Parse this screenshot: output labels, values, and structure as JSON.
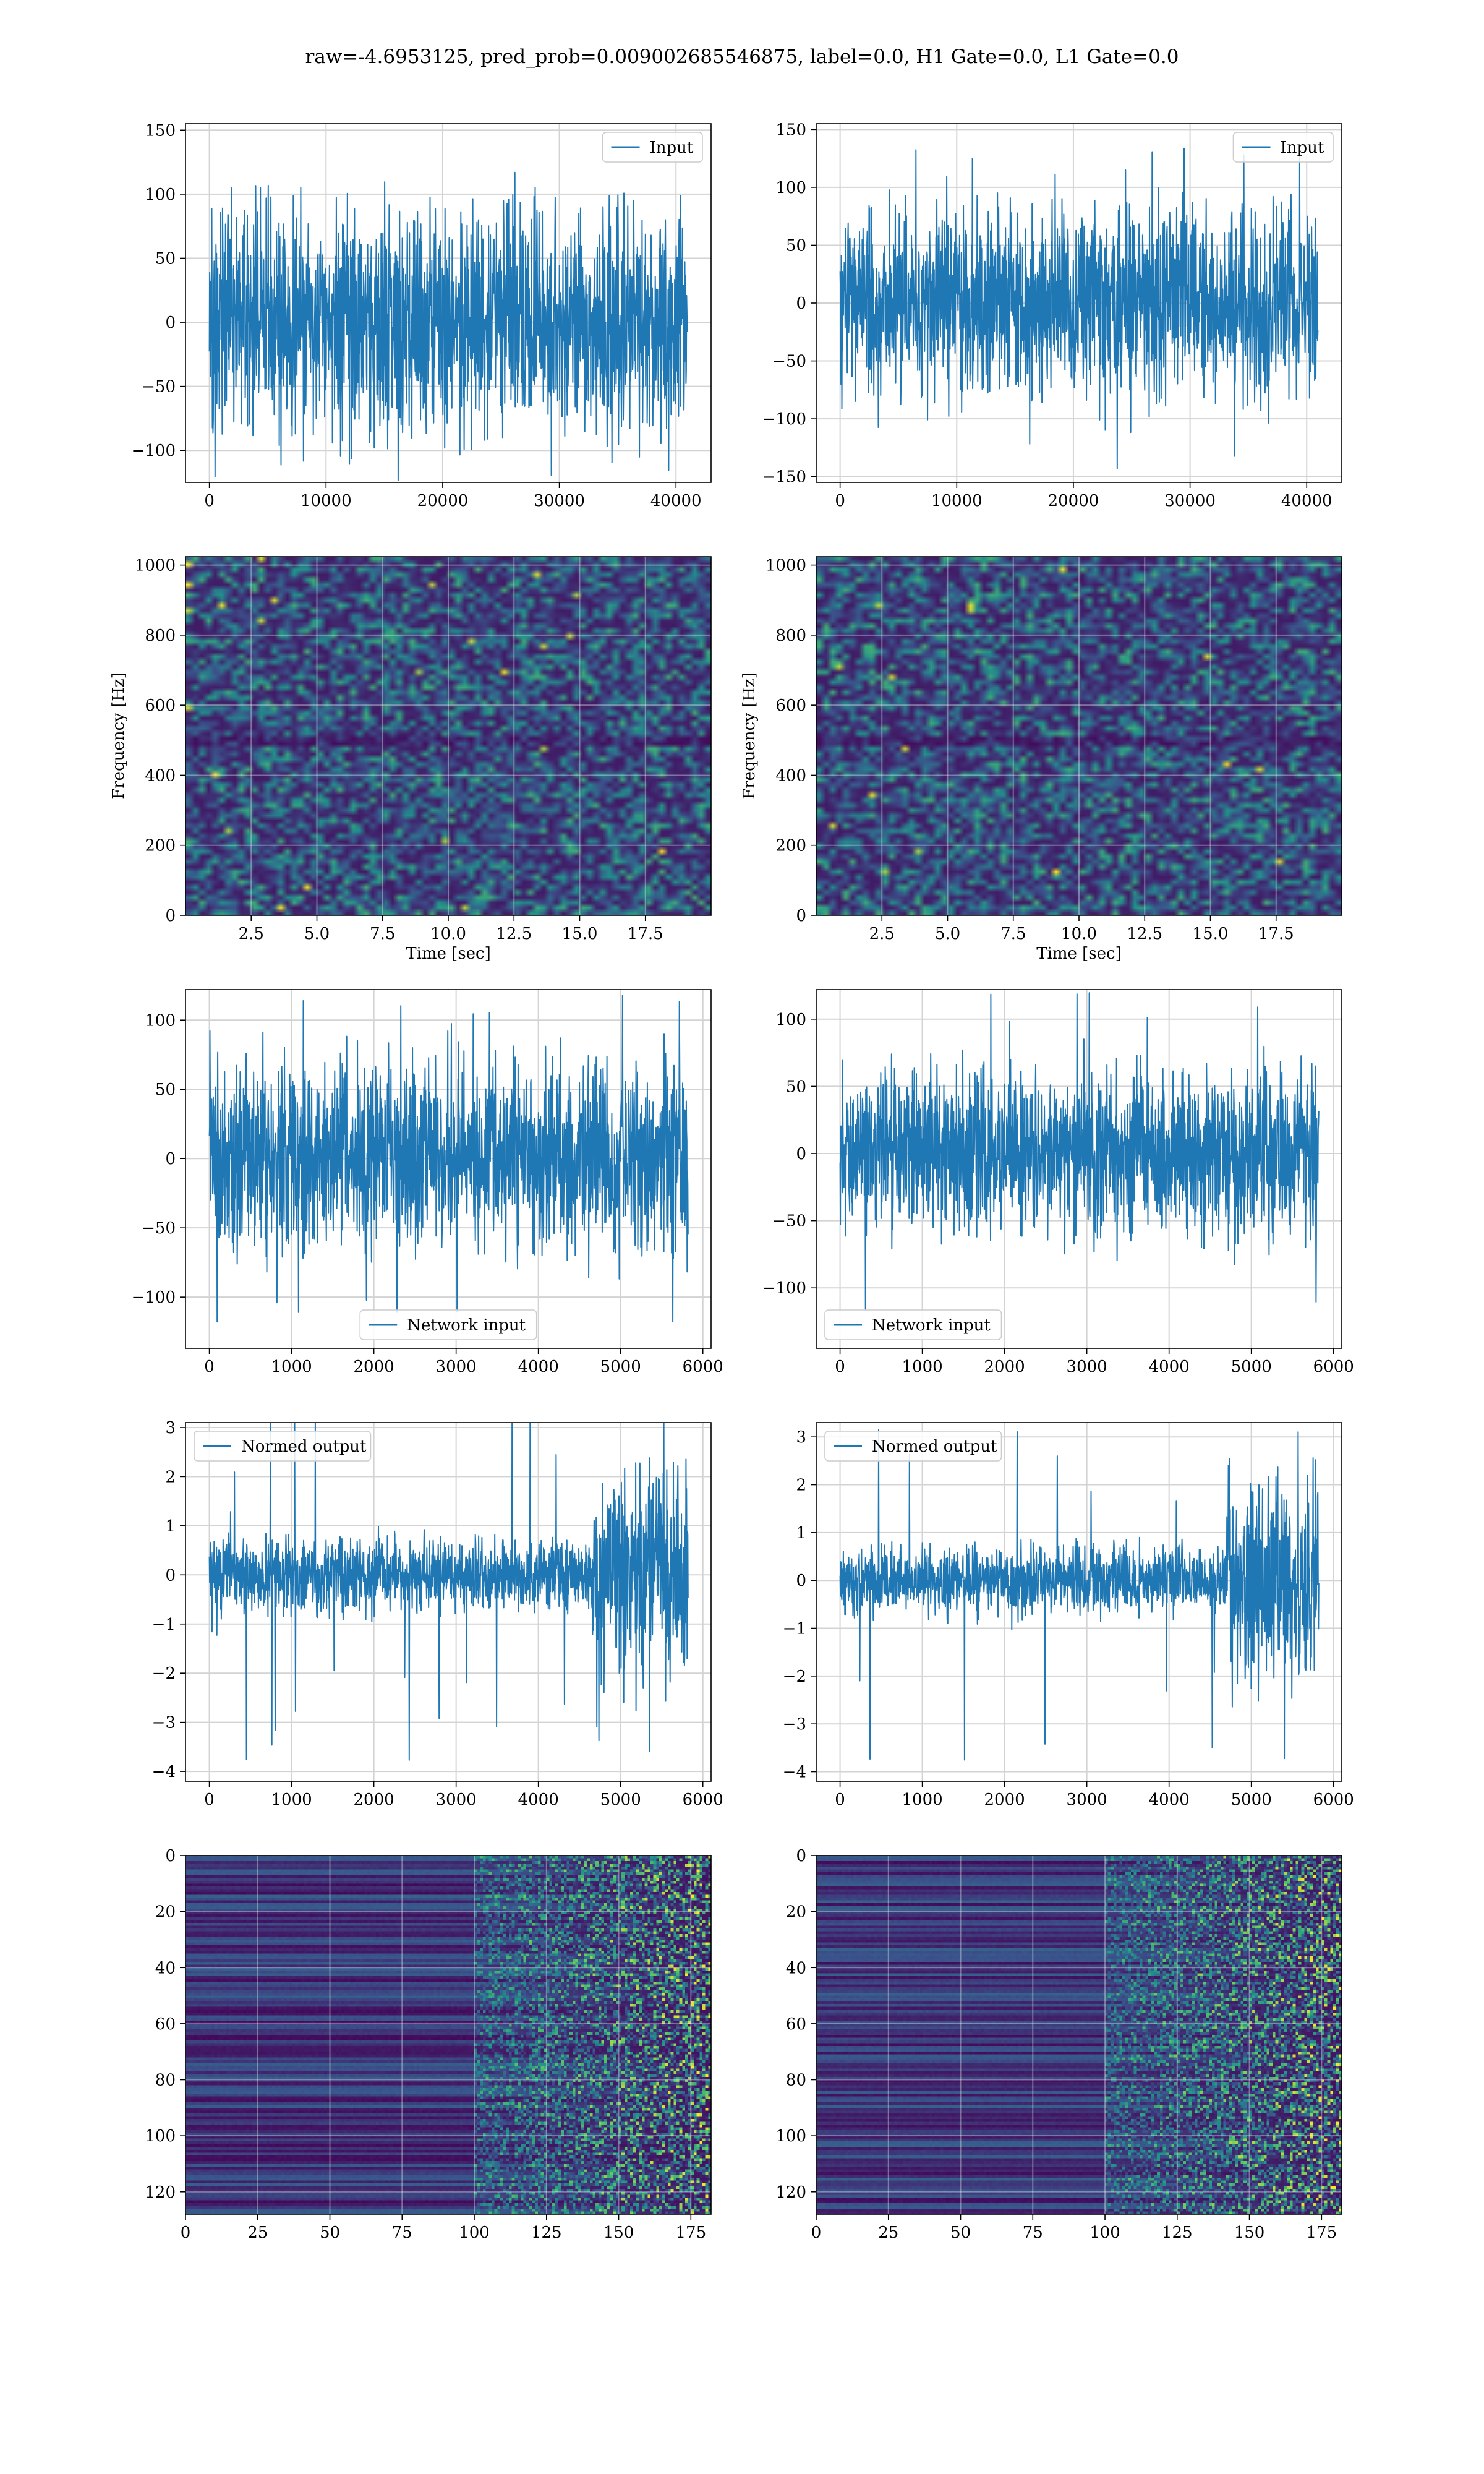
{
  "suptitle": "raw=-4.6953125, pred_prob=0.009002685546875, label=0.0, H1 Gate=0.0, L1 Gate=0.0",
  "colors": {
    "line": "#1f77b4",
    "grid": "#d3d3d3",
    "viridis": [
      "#440154",
      "#3b528b",
      "#21918c",
      "#5ec962",
      "#fde725"
    ]
  },
  "chart_data": [
    {
      "id": "input-h1",
      "type": "line",
      "row": 0,
      "col": 0,
      "xlim": [
        -2048,
        43008
      ],
      "ylim": [
        -125,
        155
      ],
      "xticks": [
        0,
        10000,
        20000,
        30000,
        40000
      ],
      "yticks": [
        -100,
        -50,
        0,
        50,
        100,
        150
      ],
      "legend": {
        "label": "Input",
        "position": "upper right"
      },
      "series": {
        "x_start": 0,
        "x_end": 40960,
        "amplitude": 45,
        "peak": 125,
        "segments": []
      }
    },
    {
      "id": "input-l1",
      "type": "line",
      "row": 0,
      "col": 1,
      "xlim": [
        -2048,
        43008
      ],
      "ylim": [
        -155,
        155
      ],
      "xticks": [
        0,
        10000,
        20000,
        30000,
        40000
      ],
      "yticks": [
        -150,
        -100,
        -50,
        0,
        50,
        100,
        150
      ],
      "legend": {
        "label": "Input",
        "position": "upper right"
      },
      "series": {
        "x_start": 0,
        "x_end": 40960,
        "amplitude": 40,
        "peak": 145,
        "segments": []
      }
    },
    {
      "id": "spectrogram-h1",
      "type": "heatmap",
      "row": 1,
      "col": 0,
      "xlim": [
        0,
        20
      ],
      "ylim": [
        0,
        1024
      ],
      "xticks": [
        2.5,
        5.0,
        7.5,
        10.0,
        12.5,
        15.0,
        17.5
      ],
      "yticks": [
        0,
        200,
        400,
        600,
        800,
        1000
      ],
      "xlabel": "Time [sec]",
      "ylabel": "Frequency [Hz]",
      "grid_cols": 80,
      "grid_rows": 70,
      "dark_band": 500
    },
    {
      "id": "spectrogram-l1",
      "type": "heatmap",
      "row": 1,
      "col": 1,
      "xlim": [
        0,
        20
      ],
      "ylim": [
        0,
        1024
      ],
      "xticks": [
        2.5,
        5.0,
        7.5,
        10.0,
        12.5,
        15.0,
        17.5
      ],
      "yticks": [
        0,
        200,
        400,
        600,
        800,
        1000
      ],
      "xlabel": "Time [sec]",
      "ylabel": "Frequency [Hz]",
      "grid_cols": 80,
      "grid_rows": 70,
      "dark_band": 500
    },
    {
      "id": "network-input-h1",
      "type": "line",
      "row": 2,
      "col": 0,
      "xlim": [
        -290,
        6100
      ],
      "ylim": [
        -137,
        122
      ],
      "xticks": [
        0,
        1000,
        2000,
        3000,
        4000,
        5000,
        6000
      ],
      "yticks": [
        -100,
        -50,
        0,
        50,
        100
      ],
      "legend": {
        "label": "Network input",
        "position": "lower center"
      },
      "series": {
        "x_start": 0,
        "x_end": 5820,
        "amplitude": 34,
        "peak": 118,
        "segments": []
      }
    },
    {
      "id": "network-input-l1",
      "type": "line",
      "row": 2,
      "col": 1,
      "xlim": [
        -290,
        6100
      ],
      "ylim": [
        -145,
        122
      ],
      "xticks": [
        0,
        1000,
        2000,
        3000,
        4000,
        5000,
        6000
      ],
      "yticks": [
        -100,
        -50,
        0,
        50,
        100
      ],
      "legend": {
        "label": "Network input",
        "position": "lower left"
      },
      "series": {
        "x_start": 0,
        "x_end": 5820,
        "amplitude": 30,
        "peak": 132,
        "segments": []
      }
    },
    {
      "id": "normed-output-h1",
      "type": "line",
      "row": 3,
      "col": 0,
      "xlim": [
        -290,
        6100
      ],
      "ylim": [
        -4.2,
        3.1
      ],
      "xticks": [
        0,
        1000,
        2000,
        3000,
        4000,
        5000,
        6000
      ],
      "yticks": [
        -4,
        -3,
        -2,
        -1,
        0,
        1,
        2,
        3
      ],
      "legend": {
        "label": "Normed output",
        "position": "upper left"
      },
      "series": {
        "x_start": 0,
        "x_end": 5820,
        "amplitude": 0.38,
        "peak": 3.9,
        "segments": [
          {
            "from": 4650,
            "to": 5820,
            "amplitude": 1.05
          }
        ]
      }
    },
    {
      "id": "normed-output-l1",
      "type": "line",
      "row": 3,
      "col": 1,
      "xlim": [
        -290,
        6100
      ],
      "ylim": [
        -4.2,
        3.3
      ],
      "xticks": [
        0,
        1000,
        2000,
        3000,
        4000,
        5000,
        6000
      ],
      "yticks": [
        -4,
        -3,
        -2,
        -1,
        0,
        1,
        2,
        3
      ],
      "legend": {
        "label": "Normed output",
        "position": "upper left"
      },
      "series": {
        "x_start": 0,
        "x_end": 5820,
        "amplitude": 0.36,
        "peak": 3.8,
        "segments": [
          {
            "from": 4700,
            "to": 5820,
            "amplitude": 1.1
          }
        ]
      }
    },
    {
      "id": "feature-map-h1",
      "type": "heatmap",
      "row": 4,
      "col": 0,
      "xlim": [
        0,
        182
      ],
      "ylim": [
        128,
        0
      ],
      "xticks": [
        0,
        25,
        50,
        75,
        100,
        125,
        150,
        175
      ],
      "yticks": [
        0,
        20,
        40,
        60,
        80,
        100,
        120
      ],
      "grid_cols": 182,
      "grid_rows": 128,
      "transition": 100
    },
    {
      "id": "feature-map-l1",
      "type": "heatmap",
      "row": 4,
      "col": 1,
      "xlim": [
        0,
        182
      ],
      "ylim": [
        128,
        0
      ],
      "xticks": [
        0,
        25,
        50,
        75,
        100,
        125,
        150,
        175
      ],
      "yticks": [
        0,
        20,
        40,
        60,
        80,
        100,
        120
      ],
      "grid_cols": 182,
      "grid_rows": 128,
      "transition": 100
    }
  ]
}
